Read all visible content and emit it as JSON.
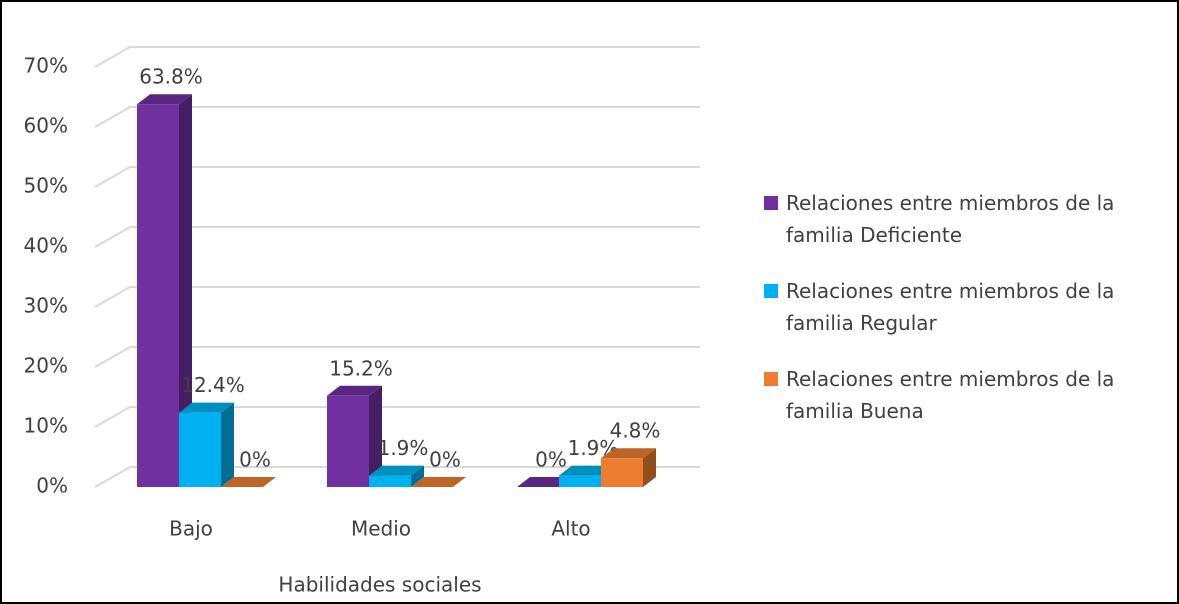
{
  "chart_data": {
    "type": "bar3d",
    "categories": [
      "Bajo",
      "Medio",
      "Alto"
    ],
    "x_label": "Habilidades sociales",
    "series": [
      {
        "name": "Relaciones entre miembros de la familia Deficiente",
        "color": "#7030a0",
        "values": [
          63.8,
          15.2,
          0
        ],
        "value_labels": [
          "63.8%",
          "15.2%",
          "0%"
        ]
      },
      {
        "name": "Relaciones entre miembros de la familia Regular",
        "color": "#00b0f0",
        "values": [
          12.4,
          1.9,
          1.9
        ],
        "value_labels": [
          "12.4%",
          "1.9%",
          "1.9%"
        ]
      },
      {
        "name": "Relaciones entre miembros de la familia Buena",
        "color": "#ed7d31",
        "values": [
          0,
          0,
          4.8
        ],
        "value_labels": [
          "0%",
          "0%",
          "4.8%"
        ]
      }
    ],
    "ylim": [
      0,
      70
    ],
    "yticks": [
      {
        "value": 0,
        "label": "0%"
      },
      {
        "value": 10,
        "label": "10%"
      },
      {
        "value": 20,
        "label": "20%"
      },
      {
        "value": 30,
        "label": "30%"
      },
      {
        "value": 40,
        "label": "40%"
      },
      {
        "value": 50,
        "label": "50%"
      },
      {
        "value": 60,
        "label": "60%"
      },
      {
        "value": 70,
        "label": "70%"
      }
    ],
    "grid": true,
    "legend": "right"
  }
}
